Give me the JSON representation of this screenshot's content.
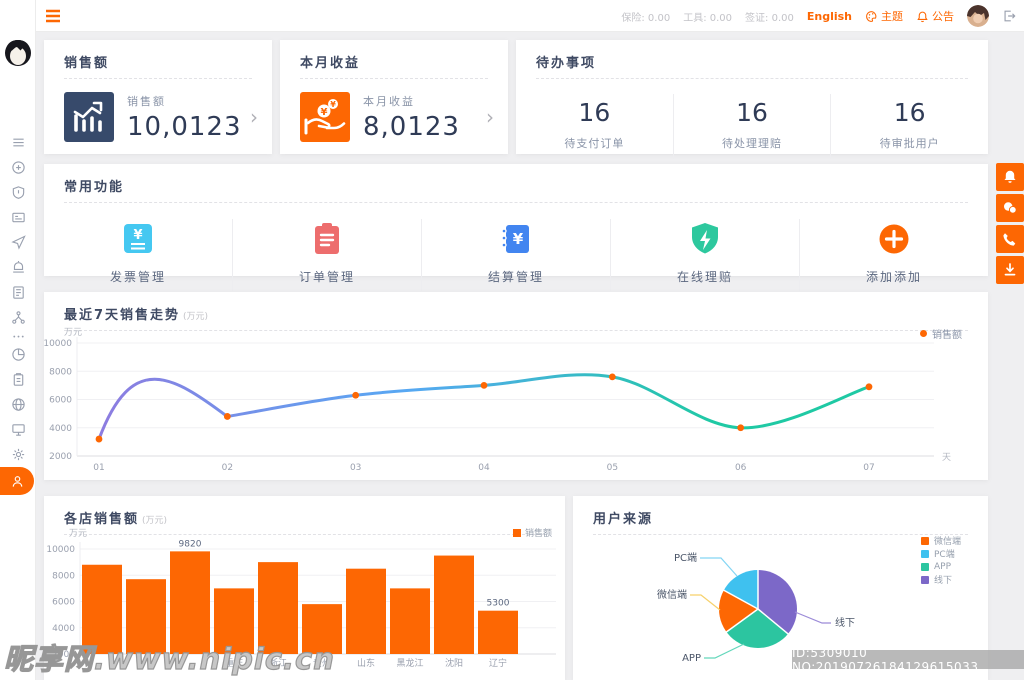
{
  "header": {
    "stats": [
      {
        "label": "保险",
        "value": "0.00"
      },
      {
        "label": "工具",
        "value": "0.00"
      },
      {
        "label": "签证",
        "value": "0.00"
      }
    ],
    "language_label": "English",
    "theme_label": "主题",
    "notice_label": "公告",
    "accent_color": "#fd6703"
  },
  "sidebar": {
    "items": [
      {
        "icon": "menu-icon"
      },
      {
        "icon": "plus-circle-icon"
      },
      {
        "icon": "shield-icon"
      },
      {
        "icon": "id-card-icon"
      },
      {
        "icon": "plane-icon"
      },
      {
        "icon": "alarm-icon"
      },
      {
        "icon": "document-icon"
      },
      {
        "icon": "org-icon"
      },
      {
        "icon": "ellipsis-icon",
        "small": true
      },
      {
        "icon": "pie-chart-icon"
      },
      {
        "icon": "clipboard-icon"
      },
      {
        "icon": "globe-icon"
      },
      {
        "icon": "monitor-icon"
      },
      {
        "icon": "gear-icon"
      },
      {
        "icon": "user-icon",
        "active": true
      }
    ]
  },
  "stat_cards": {
    "sales": {
      "card_title": "销售额",
      "label": "销售额",
      "value": "10,0123",
      "icon": "sales-chart-icon",
      "icon_color": "#374a6b"
    },
    "income": {
      "card_title": "本月收益",
      "label": "本月收益",
      "value": "8,0123",
      "icon": "income-hand-icon",
      "icon_color": "#fd6703"
    },
    "todo": {
      "card_title": "待办事项",
      "items": [
        {
          "count": "16",
          "label": "待支付订单"
        },
        {
          "count": "16",
          "label": "待处理理赔"
        },
        {
          "count": "16",
          "label": "待审批用户"
        }
      ]
    }
  },
  "quick_functions": {
    "title": "常用功能",
    "items": [
      {
        "label": "发票管理",
        "icon": "invoice-icon",
        "color": "#45c8f1"
      },
      {
        "label": "订单管理",
        "icon": "order-icon",
        "color": "#ed6d6d"
      },
      {
        "label": "结算管理",
        "icon": "settlement-icon",
        "color": "#4285f0"
      },
      {
        "label": "在线理赔",
        "icon": "claims-shield-icon",
        "color": "#2dc89e"
      },
      {
        "label": "添加添加",
        "icon": "add-icon",
        "color": "#fd6703"
      }
    ]
  },
  "chart_data": [
    {
      "type": "line",
      "title": "最近7天销售走势",
      "unit_note": "(万元)",
      "ylabel": "万元",
      "xlabel": "天",
      "x": [
        "01",
        "02",
        "03",
        "04",
        "05",
        "06",
        "07"
      ],
      "series": [
        {
          "name": "销售额",
          "values": [
            3200,
            4800,
            6300,
            7000,
            7600,
            4000,
            6900
          ]
        }
      ],
      "ylim": [
        2000,
        10000
      ],
      "yticks": [
        2000,
        4000,
        6000,
        8000,
        10000
      ],
      "grid": true,
      "legend_position": "top-right",
      "line_gradient": [
        "#8d7ce0",
        "#57a8f3",
        "#1fc9a4"
      ],
      "point_color": "#fd6703"
    },
    {
      "type": "bar",
      "title": "各店销售额",
      "unit_note": "(万元)",
      "ylabel": "万元",
      "categories": [
        "",
        "",
        "",
        "重庆",
        "浙江",
        "贵州",
        "山东",
        "黑龙江",
        "沈阳",
        "辽宁"
      ],
      "series": [
        {
          "name": "销售额",
          "values": [
            8800,
            7700,
            9820,
            7000,
            9000,
            5800,
            8500,
            7000,
            9500,
            5300
          ]
        }
      ],
      "value_labels": [
        "",
        "",
        "9820",
        "",
        "",
        "",
        "",
        "",
        "",
        "5300"
      ],
      "ylim": [
        2000,
        10000
      ],
      "yticks": [
        2000,
        4000,
        6000,
        8000,
        10000
      ],
      "grid": true,
      "legend_position": "top-right",
      "bar_color": "#fd6703"
    },
    {
      "type": "pie",
      "title": "用户来源",
      "slices": [
        {
          "name": "线下",
          "percent": 36,
          "color": "#7c68c8",
          "callout_color": "#a successive"
        },
        {
          "name": "APP",
          "percent": 29,
          "color": "#2cc5a0",
          "callout_color": "#63d7bb"
        },
        {
          "name": "微信端",
          "percent": 18,
          "color": "#fd6703",
          "callout_color": "#f6d16b"
        },
        {
          "name": "PC端",
          "percent": 17,
          "color": "#3fc1ef",
          "callout_color": "#83d5f4"
        }
      ],
      "legend": [
        "微信端",
        "PC端",
        "APP",
        "线下"
      ],
      "legend_position": "top-right"
    }
  ],
  "floating_buttons": [
    {
      "icon": "bell-icon"
    },
    {
      "icon": "wechat-icon"
    },
    {
      "icon": "phone-icon"
    },
    {
      "icon": "download-icon"
    }
  ],
  "watermark": {
    "site_text": "昵享网.www.nipic.cn",
    "id_text": "ID:5309010 NO:20190726184129615033"
  }
}
